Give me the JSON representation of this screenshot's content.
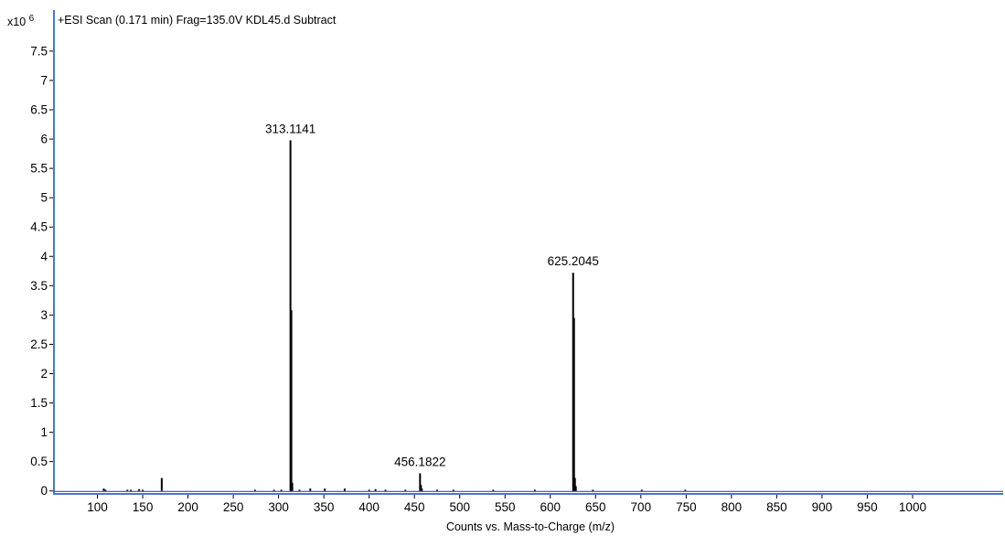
{
  "chart_data": {
    "type": "bar",
    "title": "+ESI Scan (0.171 min) Frag=135.0V KDL45.d  Subtract",
    "xlabel": "Counts vs. Mass-to-Charge (m/z)",
    "ylabel": "",
    "y_exponent_label": "x10",
    "y_exponent_power": "6",
    "xlim": [
      52,
      1100
    ],
    "ylim": [
      -0.02,
      8.2
    ],
    "x_ticks": [
      100,
      150,
      200,
      250,
      300,
      350,
      400,
      450,
      500,
      550,
      600,
      650,
      700,
      750,
      800,
      850,
      900,
      950,
      1000
    ],
    "y_ticks": [
      0,
      0.5,
      1,
      1.5,
      2,
      2.5,
      3,
      3.5,
      4,
      4.5,
      5,
      5.5,
      6,
      6.5,
      7,
      7.5
    ],
    "y_tick_labels": [
      "0",
      "0.5",
      "1",
      "1.5",
      "2",
      "2.5",
      "3",
      "3.5",
      "4",
      "4.5",
      "5",
      "5.5",
      "6",
      "6.5",
      "7",
      "7.5"
    ],
    "grid": false,
    "colors": {
      "peaks": "#000000",
      "axis_accent": "#4a78c8",
      "baseline": "#4a78c8"
    },
    "peaks": [
      {
        "x": 107,
        "y": 0.04
      },
      {
        "x": 109,
        "y": 0.02
      },
      {
        "x": 133,
        "y": 0.02
      },
      {
        "x": 137,
        "y": 0.02
      },
      {
        "x": 146,
        "y": 0.03
      },
      {
        "x": 150,
        "y": 0.02
      },
      {
        "x": 171,
        "y": 0.22
      },
      {
        "x": 274,
        "y": 0.02
      },
      {
        "x": 295,
        "y": 0.02
      },
      {
        "x": 303,
        "y": 0.02
      },
      {
        "x": 313.1141,
        "y": 5.98
      },
      {
        "x": 314.1,
        "y": 3.08
      },
      {
        "x": 315.1,
        "y": 0.14
      },
      {
        "x": 323,
        "y": 0.02
      },
      {
        "x": 335,
        "y": 0.04
      },
      {
        "x": 351,
        "y": 0.04
      },
      {
        "x": 373,
        "y": 0.04
      },
      {
        "x": 400,
        "y": 0.02
      },
      {
        "x": 407,
        "y": 0.03
      },
      {
        "x": 418,
        "y": 0.02
      },
      {
        "x": 440,
        "y": 0.02
      },
      {
        "x": 456.1822,
        "y": 0.3
      },
      {
        "x": 457.2,
        "y": 0.1
      },
      {
        "x": 458.2,
        "y": 0.04
      },
      {
        "x": 475,
        "y": 0.02
      },
      {
        "x": 493,
        "y": 0.02
      },
      {
        "x": 537,
        "y": 0.02
      },
      {
        "x": 583,
        "y": 0.02
      },
      {
        "x": 625.2045,
        "y": 3.72
      },
      {
        "x": 626.2,
        "y": 2.95
      },
      {
        "x": 627.2,
        "y": 0.22
      },
      {
        "x": 628.2,
        "y": 0.08
      },
      {
        "x": 647,
        "y": 0.02
      },
      {
        "x": 701,
        "y": 0.02
      },
      {
        "x": 749,
        "y": 0.02
      }
    ],
    "peak_labels": [
      {
        "x": 313.1141,
        "y": 5.98,
        "text": "313.1141"
      },
      {
        "x": 456.1822,
        "y": 0.3,
        "text": "456.1822"
      },
      {
        "x": 625.2045,
        "y": 3.72,
        "text": "625.2045"
      }
    ]
  }
}
